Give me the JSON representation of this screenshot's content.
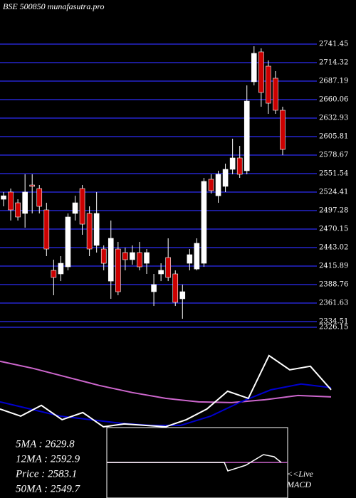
{
  "chart_data": [
    {
      "type": "candlestick",
      "title": "BSE 500850 munafasutra.pro",
      "open": [
        2513.9,
        2524.4,
        2508.7,
        2493.1,
        2534.8,
        2529.6,
        2498.3,
        2409.6,
        2404.4,
        2414.8,
        2493.1,
        2529.6,
        2493.1,
        2446.2,
        2440.9,
        2393.9,
        2440.9,
        2435.7,
        2425.3,
        2435.7,
        2420.0,
        2378.3,
        2404.4,
        2428.4,
        2404.4,
        2367.9,
        2420.0,
        2411.6,
        2420.0,
        2543.2,
        2519.0,
        2532.8,
        2557.8,
        2574.5,
        2555.7,
        2686.2,
        2730.0,
        2709.1,
        2691.4,
        2644.4
      ],
      "high": [
        2524.4,
        2529.6,
        2513.9,
        2550.5,
        2550.5,
        2534.8,
        2508.7,
        2425.3,
        2430.5,
        2493.1,
        2519.0,
        2534.8,
        2503.5,
        2524.4,
        2446.2,
        2482.7,
        2451.4,
        2443.0,
        2446.2,
        2451.4,
        2440.9,
        2404.4,
        2420.0,
        2456.6,
        2409.6,
        2388.7,
        2440.9,
        2456.6,
        2545.3,
        2550.5,
        2555.7,
        2566.1,
        2602.7,
        2592.2,
        2680.9,
        2738.3,
        2735.2,
        2717.5,
        2701.8,
        2649.6
      ],
      "low": [
        2503.5,
        2482.7,
        2482.7,
        2472.2,
        2493.1,
        2493.1,
        2430.5,
        2373.1,
        2393.9,
        2409.6,
        2482.7,
        2461.8,
        2430.5,
        2435.7,
        2409.6,
        2367.9,
        2373.1,
        2409.6,
        2417.9,
        2409.6,
        2404.4,
        2357.4,
        2393.9,
        2393.9,
        2357.4,
        2338.6,
        2409.6,
        2409.6,
        2414.8,
        2522.3,
        2508.7,
        2524.4,
        2550.5,
        2545.3,
        2550.5,
        2680.9,
        2649.6,
        2639.2,
        2639.2,
        2578.6
      ],
      "close": [
        2519.0,
        2498.3,
        2487.9,
        2524.4,
        2532.8,
        2503.5,
        2440.9,
        2399.2,
        2420.0,
        2487.9,
        2508.7,
        2477.4,
        2440.9,
        2493.1,
        2420.0,
        2456.6,
        2378.3,
        2425.3,
        2435.7,
        2414.8,
        2435.7,
        2388.7,
        2409.6,
        2399.2,
        2362.7,
        2378.3,
        2432.6,
        2449.3,
        2540.1,
        2526.5,
        2550.5,
        2557.8,
        2574.5,
        2550.5,
        2657.9,
        2727.9,
        2670.5,
        2654.8,
        2644.4,
        2587.0
      ],
      "up_color": "#ffffff",
      "down_color": "#cc0000",
      "ylim": [
        2326.15,
        2741.45
      ],
      "yticks": [
        2741.45,
        2714.32,
        2687.19,
        2660.06,
        2632.93,
        2605.81,
        2578.67,
        2551.54,
        2524.41,
        2497.28,
        2470.15,
        2443.02,
        2415.89,
        2388.76,
        2361.63,
        2334.51,
        2326.15
      ],
      "grid": true,
      "grid_color": "#1c1c9a"
    },
    {
      "type": "line",
      "ylim": [
        2410,
        2808
      ],
      "series": [
        {
          "name": "50MA",
          "color": "#cc66cc",
          "values": [
            2715.7,
            2682.5,
            2642.7,
            2602.9,
            2569.7,
            2543.1,
            2526.5,
            2523.2,
            2536.5,
            2556.4,
            2549.7
          ]
        },
        {
          "name": "12MA",
          "color": "#0000cc",
          "values": [
            2526.5,
            2493.3,
            2460.1,
            2443.5,
            2426.9,
            2416.9,
            2416.9,
            2460.1,
            2526.5,
            2582.9,
            2609.5,
            2592.9
          ]
        },
        {
          "name": "Price",
          "color": "#ffffff",
          "values": [
            2493.3,
            2460.1,
            2510.1,
            2443.5,
            2476.7,
            2410.3,
            2423.6,
            2416.9,
            2410.3,
            2443.5,
            2493.3,
            2576.3,
            2543.1,
            2742.3,
            2675.9,
            2692.5,
            2583.1
          ]
        }
      ]
    }
  ],
  "indicators": [
    "5MA : 2629.8",
    "12MA : 2592.9",
    "Price   : 2583.1",
    "50MA : 2549.7"
  ],
  "macd": {
    "line1": "<<Live",
    "line2": "MACD"
  }
}
